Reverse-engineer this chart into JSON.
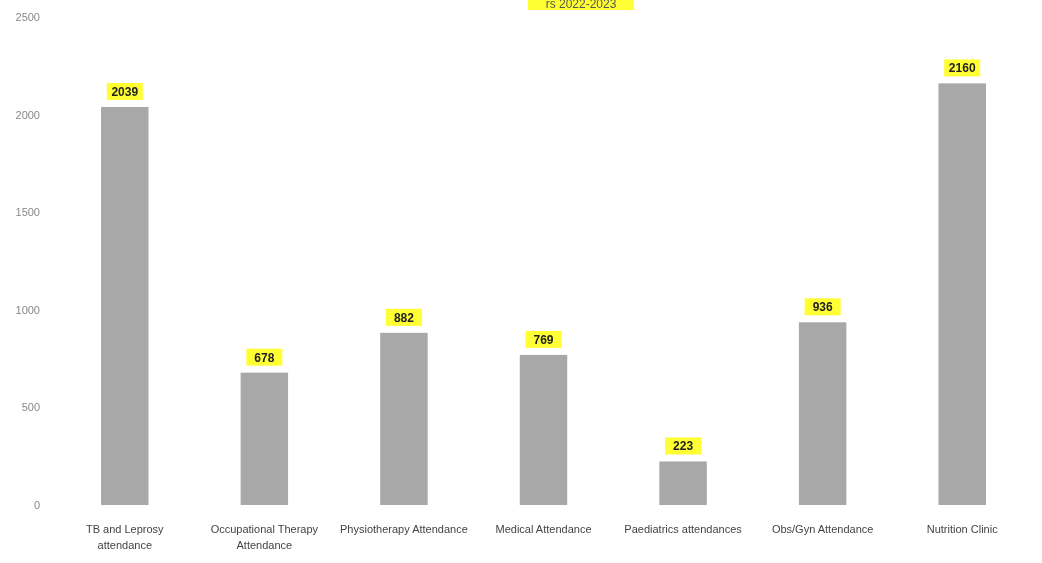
{
  "chart_data": {
    "type": "bar",
    "title": "rs 2022-2023",
    "categories": [
      "TB and Leprosy attendance",
      "Occupational Therapy Attendance",
      "Physiotherapy Attendance",
      "Medical Attendance",
      "Paediatrics attendances",
      "Obs/Gyn Attendance",
      "Nutrition Clinic"
    ],
    "values": [
      2039,
      678,
      882,
      769,
      223,
      936,
      2160
    ],
    "color": "#a8a8a8",
    "ylim": [
      0,
      2500
    ],
    "yticks": [
      0,
      500,
      1000,
      1500,
      2000,
      2500
    ],
    "data_labels": true
  }
}
